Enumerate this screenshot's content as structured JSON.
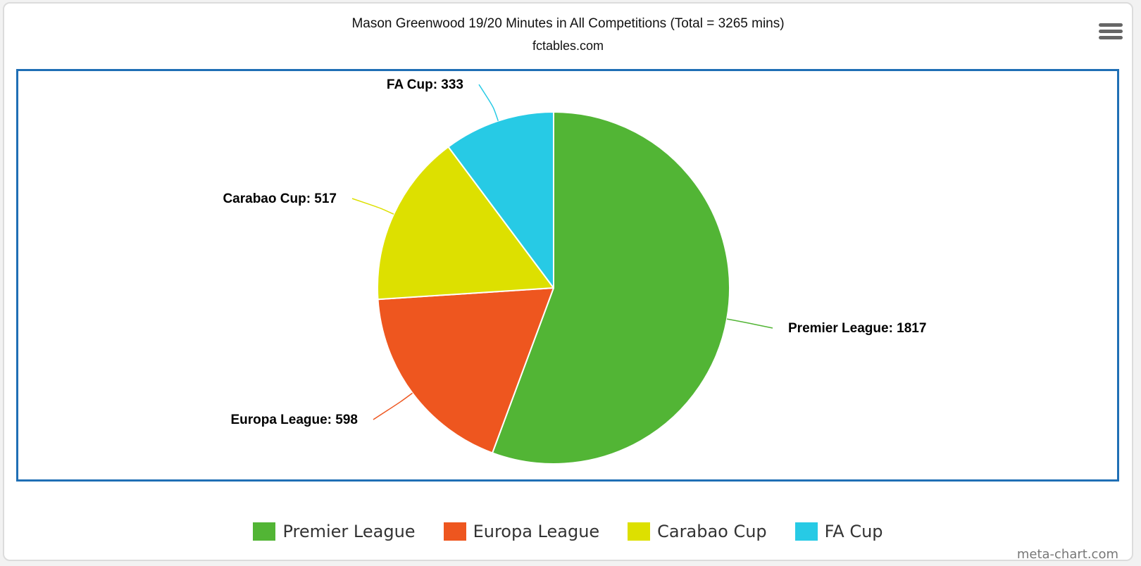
{
  "chart_data": {
    "type": "pie",
    "title": "Mason Greenwood 19/20 Minutes in All Competitions (Total = 3265 mins)",
    "subtitle": "fctables.com",
    "slices": [
      {
        "label": "Premier League",
        "value": 1817,
        "color": "#52b535"
      },
      {
        "label": "Europa League",
        "value": 598,
        "color": "#ee561f"
      },
      {
        "label": "Carabao Cup",
        "value": 517,
        "color": "#dde000"
      },
      {
        "label": "FA Cup",
        "value": 333,
        "color": "#27cae5"
      }
    ],
    "legend_position": "bottom"
  },
  "credit": "meta-chart.com",
  "menu_icon": "hamburger-menu-icon"
}
